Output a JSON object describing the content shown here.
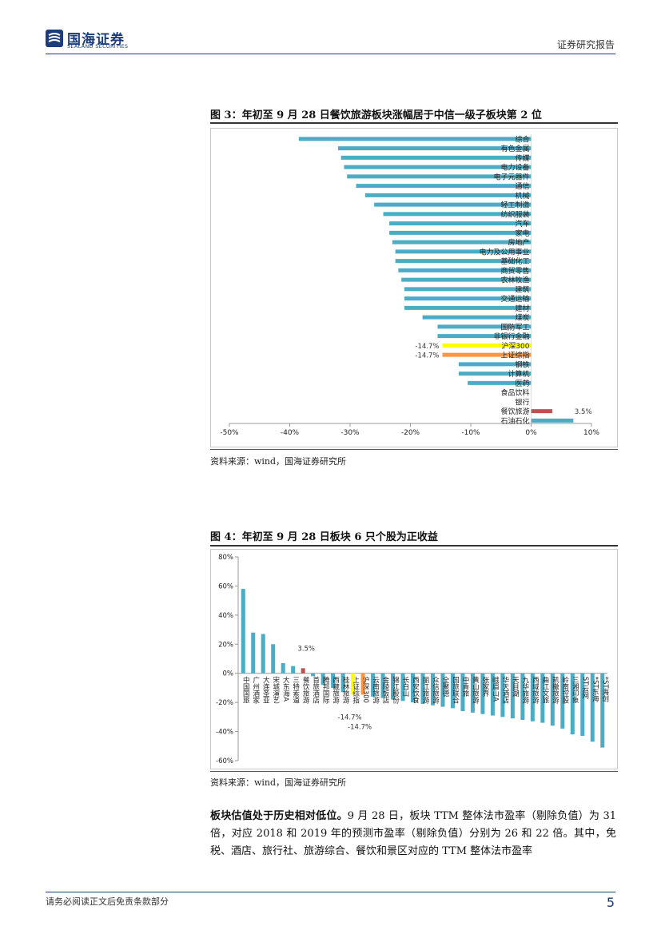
{
  "header": {
    "company_cn": "国海证券",
    "company_en": "SEALAND SECURITIES",
    "report_type": "证券研究报告",
    "brand_color": "#1c3d7a"
  },
  "figure3": {
    "title": "图 3：年初至 9 月 28 日餐饮旅游板块涨幅居于中信一级子板块第 2 位",
    "source": "资料来源：wind，国海证券研究所",
    "chart_data": {
      "type": "bar",
      "orientation": "horizontal",
      "xlim": [
        -50,
        10
      ],
      "x_ticks": [
        "-50%",
        "-40%",
        "-30%",
        "-20%",
        "-10%",
        "0%",
        "10%"
      ],
      "x_tick_values": [
        -50,
        -40,
        -30,
        -20,
        -10,
        0,
        10
      ],
      "categories": [
        "综合",
        "有色金属",
        "传媒",
        "电力设备",
        "电子元器件",
        "通信",
        "机械",
        "轻工制造",
        "纺织服装",
        "汽车",
        "家电",
        "房地产",
        "电力及公用事业",
        "基础化工",
        "商贸零售",
        "农林牧渔",
        "建筑",
        "交通运输",
        "建材",
        "煤炭",
        "国防军工",
        "非银行金融",
        "沪深300",
        "上证综指",
        "钢铁",
        "计算机",
        "医药",
        "食品饮料",
        "银行",
        "餐饮旅游",
        "石油石化"
      ],
      "values": [
        -38.5,
        -32,
        -31.5,
        -31,
        -30.5,
        -29,
        -27.5,
        -26,
        -24.5,
        -23.5,
        -23.5,
        -23,
        -22.5,
        -22.5,
        -22,
        -21.5,
        -21,
        -21,
        -21,
        -18,
        -15.5,
        -15.5,
        -14.7,
        -14.7,
        -12,
        -12,
        -10.5,
        0,
        0,
        3.5,
        7
      ],
      "colors": [
        "#4bacc6",
        "#4bacc6",
        "#4bacc6",
        "#4bacc6",
        "#4bacc6",
        "#4bacc6",
        "#4bacc6",
        "#4bacc6",
        "#4bacc6",
        "#4bacc6",
        "#4bacc6",
        "#4bacc6",
        "#4bacc6",
        "#4bacc6",
        "#4bacc6",
        "#4bacc6",
        "#4bacc6",
        "#4bacc6",
        "#4bacc6",
        "#4bacc6",
        "#4bacc6",
        "#4bacc6",
        "#ffff00",
        "#f79646",
        "#4bacc6",
        "#4bacc6",
        "#4bacc6",
        "#4bacc6",
        "#4bacc6",
        "#c0504d",
        "#4bacc6"
      ],
      "data_labels": [
        {
          "category": "沪深300",
          "text": "-14.7%"
        },
        {
          "category": "上证综指",
          "text": "-14.7%"
        },
        {
          "category": "餐饮旅游",
          "text": "3.5%"
        }
      ]
    }
  },
  "figure4": {
    "title": "图 4：年初至 9 月 28 日板块 6 只个股为正收益",
    "source": "资料来源：wind，国海证券研究所",
    "chart_data": {
      "type": "bar",
      "orientation": "vertical",
      "ylim": [
        -60,
        80
      ],
      "y_ticks": [
        "80%",
        "60%",
        "40%",
        "20%",
        "0%",
        "-20%",
        "-40%",
        "-60%"
      ],
      "y_tick_values": [
        80,
        60,
        40,
        20,
        0,
        -20,
        -40,
        -60
      ],
      "categories": [
        "中国国旅",
        "广州酒家",
        "大连圣亚",
        "宋城演艺",
        "大东海A",
        "三特索道",
        "餐饮旅游",
        "首旅酒店",
        "腾邦国际",
        "西藏旅游",
        "桂林旅游",
        "上证综指",
        "沪深300",
        "云南旅游",
        "金陵饭店",
        "锦江股份",
        "长白山",
        "西安饮食",
        "丽江旅游",
        "众信旅游",
        "全聚德",
        "国旅联合",
        "中青旅",
        "黄山旅游",
        "张家界",
        "峨眉山A",
        "华天酒店",
        "天目湖",
        "九华旅游",
        "西域旅游",
        "曲江文旅",
        "凯撒旅游",
        "岭南控股",
        "三湘印象",
        "ST云网",
        "*ST东海",
        "*ST海创"
      ],
      "values": [
        58,
        28,
        27,
        20,
        7,
        5,
        3.5,
        -2,
        -8,
        -10,
        -13,
        -14.7,
        -14.7,
        -16,
        -17,
        -18,
        -19,
        -20,
        -21,
        -22,
        -23,
        -24,
        -26,
        -27,
        -28,
        -29,
        -30,
        -31,
        -32,
        -33,
        -34,
        -36,
        -38,
        -42,
        -43,
        -47,
        -51
      ],
      "colors": [
        "#4bacc6",
        "#4bacc6",
        "#4bacc6",
        "#4bacc6",
        "#4bacc6",
        "#4bacc6",
        "#c0504d",
        "#4bacc6",
        "#4bacc6",
        "#4bacc6",
        "#4bacc6",
        "#ffff00",
        "#f79646",
        "#4bacc6",
        "#4bacc6",
        "#4bacc6",
        "#4bacc6",
        "#4bacc6",
        "#4bacc6",
        "#4bacc6",
        "#4bacc6",
        "#4bacc6",
        "#4bacc6",
        "#4bacc6",
        "#4bacc6",
        "#4bacc6",
        "#4bacc6",
        "#4bacc6",
        "#4bacc6",
        "#4bacc6",
        "#4bacc6",
        "#4bacc6",
        "#4bacc6",
        "#4bacc6",
        "#4bacc6",
        "#4bacc6",
        "#4bacc6"
      ],
      "data_labels": [
        {
          "category": "餐饮旅游",
          "text": "3.5%"
        },
        {
          "category": "上证综指",
          "text": "-14.7%"
        },
        {
          "category": "沪深300",
          "text": "-14.7%"
        }
      ]
    }
  },
  "body": {
    "bold_lead": "板块估值处于历史相对低位。",
    "text": "9 月 28 日，板块 TTM 整体法市盈率（剔除负值）为 31 倍，对应 2018 和 2019 年的预测市盈率（剔除负值）分别为 26 和 22 倍。其中，免税、酒店、旅行社、旅游综合、餐饮和景区对应的 TTM 整体法市盈率"
  },
  "footer": {
    "note": "请务必阅读正文后免责条款部分",
    "page_number": "5"
  }
}
